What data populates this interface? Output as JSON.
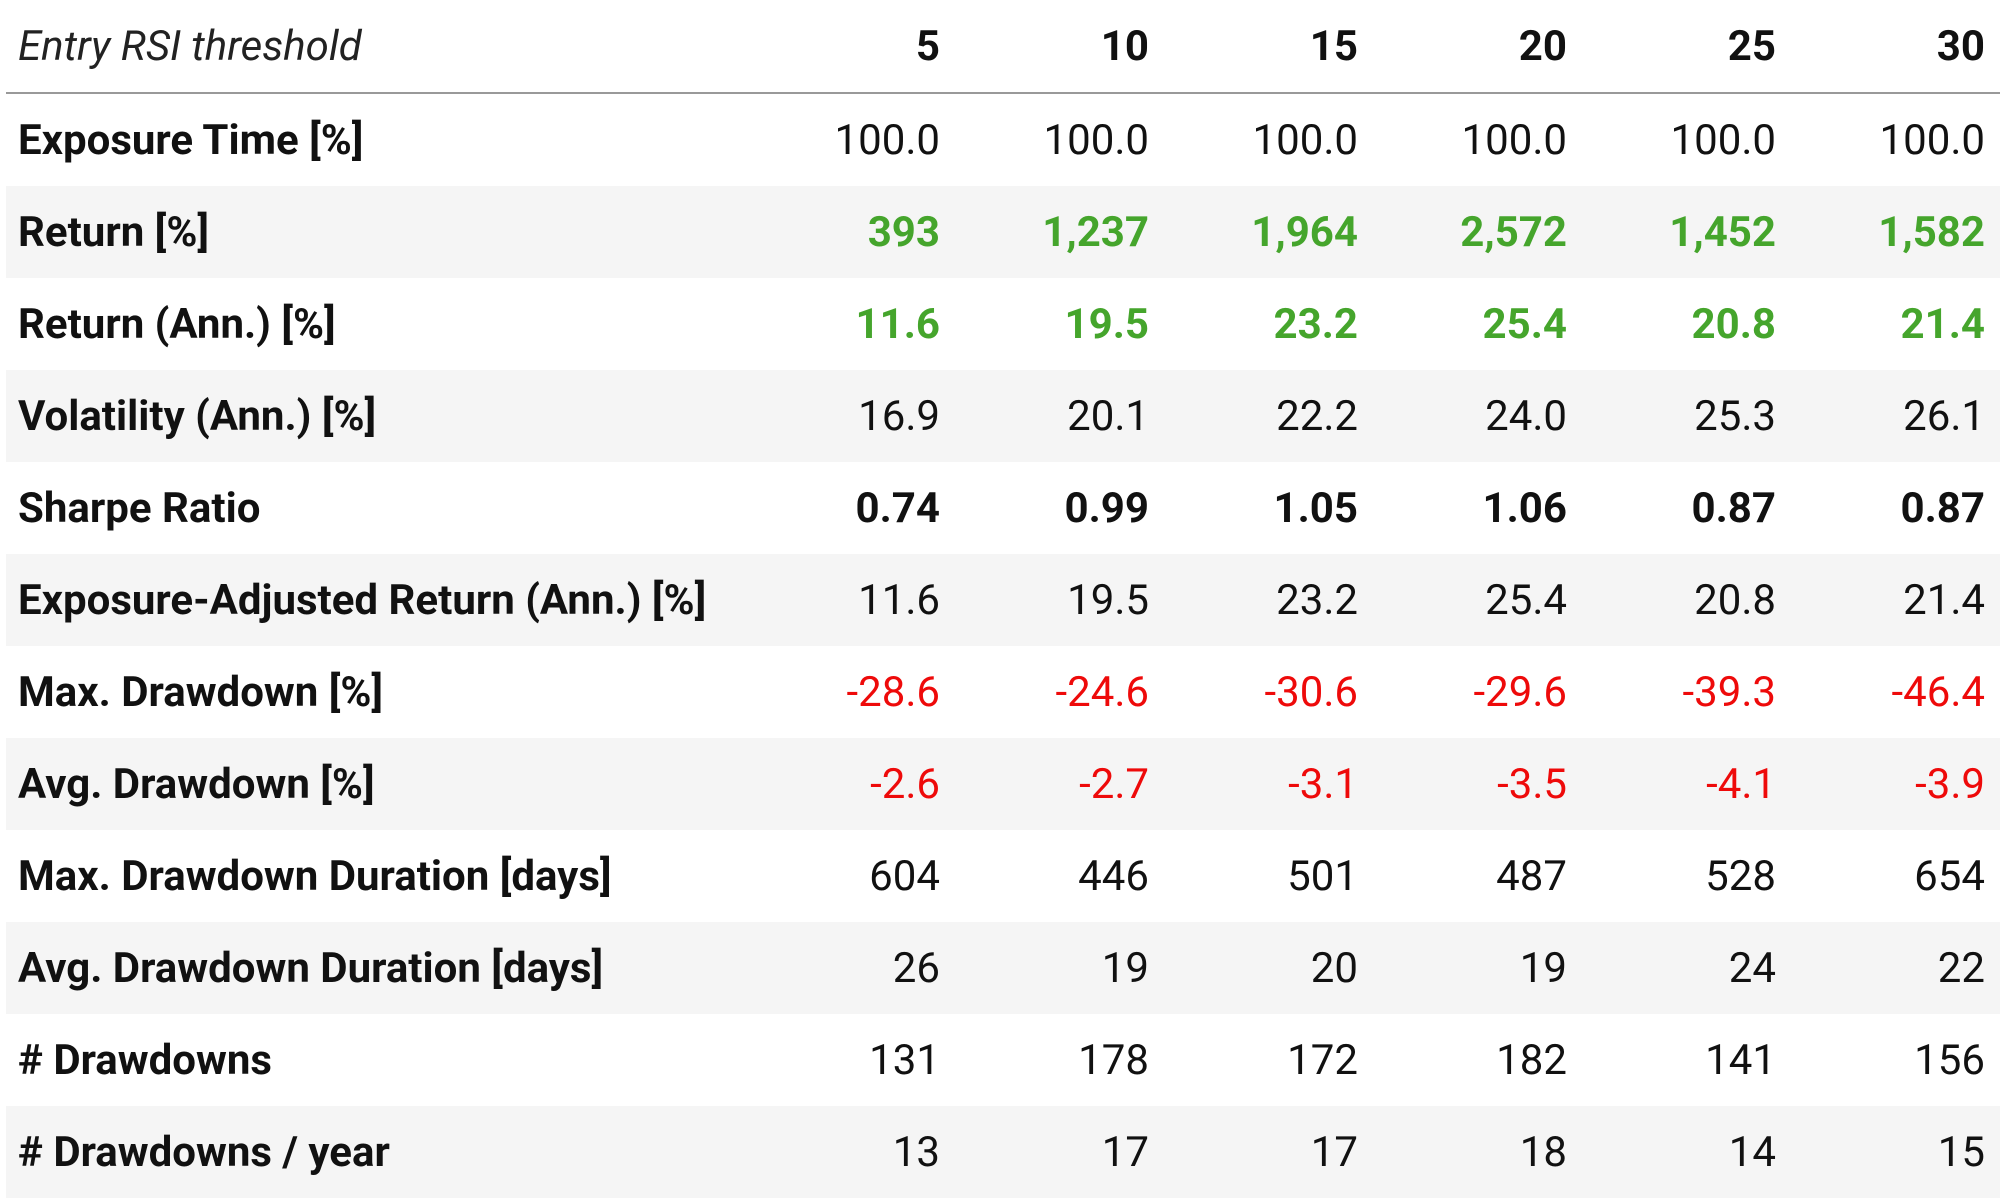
{
  "table": {
    "header": {
      "label": "Entry RSI threshold",
      "columns": [
        "5",
        "10",
        "15",
        "20",
        "25",
        "30"
      ]
    },
    "rows": [
      {
        "label": "Exposure Time [%]",
        "cells": [
          "100.0",
          "100.0",
          "100.0",
          "100.0",
          "100.0",
          "100.0"
        ]
      },
      {
        "label": "Return [%]",
        "cells": [
          "393",
          "1,237",
          "1,964",
          "2,572",
          "1,452",
          "1,582"
        ]
      },
      {
        "label": "Return (Ann.) [%]",
        "cells": [
          "11.6",
          "19.5",
          "23.2",
          "25.4",
          "20.8",
          "21.4"
        ]
      },
      {
        "label": "Volatility (Ann.) [%]",
        "cells": [
          "16.9",
          "20.1",
          "22.2",
          "24.0",
          "25.3",
          "26.1"
        ]
      },
      {
        "label": "Sharpe Ratio",
        "cells": [
          "0.74",
          "0.99",
          "1.05",
          "1.06",
          "0.87",
          "0.87"
        ]
      },
      {
        "label": "Exposure-Adjusted Return (Ann.) [%]",
        "cells": [
          "11.6",
          "19.5",
          "23.2",
          "25.4",
          "20.8",
          "21.4"
        ]
      },
      {
        "label": "Max. Drawdown [%]",
        "cells": [
          "-28.6",
          "-24.6",
          "-30.6",
          "-29.6",
          "-39.3",
          "-46.4"
        ]
      },
      {
        "label": "Avg. Drawdown [%]",
        "cells": [
          "-2.6",
          "-2.7",
          "-3.1",
          "-3.5",
          "-4.1",
          "-3.9"
        ]
      },
      {
        "label": "Max. Drawdown Duration [days]",
        "cells": [
          "604",
          "446",
          "501",
          "487",
          "528",
          "654"
        ]
      },
      {
        "label": "Avg. Drawdown Duration [days]",
        "cells": [
          "26",
          "19",
          "20",
          "19",
          "24",
          "22"
        ]
      },
      {
        "label": "# Drawdowns",
        "cells": [
          "131",
          "178",
          "172",
          "182",
          "141",
          "156"
        ]
      },
      {
        "label": "# Drawdowns / year",
        "cells": [
          "13",
          "17",
          "17",
          "18",
          "14",
          "15"
        ]
      }
    ]
  }
}
